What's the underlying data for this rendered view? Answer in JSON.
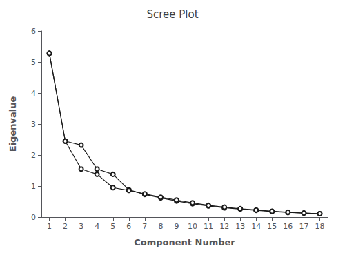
{
  "chart_data": {
    "type": "line",
    "title": "Scree Plot",
    "xlabel": "Component Number",
    "ylabel": "Eigenvalue",
    "x": [
      1,
      2,
      3,
      4,
      5,
      6,
      7,
      8,
      9,
      10,
      11,
      12,
      13,
      14,
      15,
      16,
      17,
      18
    ],
    "series": [
      {
        "color": "#1a1a1a",
        "values": [
          5.28,
          2.45,
          2.32,
          1.55,
          1.38,
          0.88,
          0.73,
          0.62,
          0.52,
          0.43,
          0.36,
          0.3,
          0.26,
          0.22,
          0.18,
          0.15,
          0.13,
          0.11
        ]
      },
      {
        "color": "#1a1a1a",
        "values": [
          5.28,
          2.45,
          1.55,
          1.38,
          0.95,
          0.86,
          0.75,
          0.64,
          0.55,
          0.46,
          0.38,
          0.32,
          0.27,
          0.23,
          0.19,
          0.16,
          0.13,
          0.11
        ]
      }
    ],
    "xlim": [
      0.5,
      18.5
    ],
    "xticks": [
      1,
      2,
      3,
      4,
      5,
      6,
      7,
      8,
      9,
      10,
      11,
      12,
      13,
      14,
      15,
      16,
      17,
      18
    ],
    "ylim": [
      0,
      6
    ],
    "yticks": [
      0,
      1,
      2,
      3,
      4,
      5,
      6
    ],
    "marker": "circle",
    "grid": false
  }
}
